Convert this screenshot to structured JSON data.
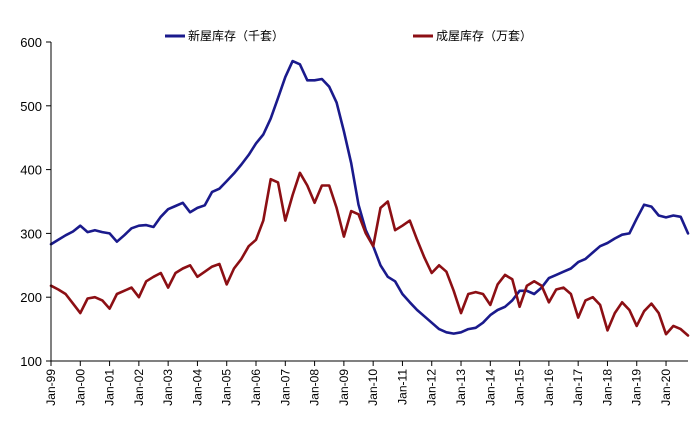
{
  "chart_data": {
    "type": "line",
    "title": "",
    "xlabel": "",
    "ylabel": "",
    "ylim": [
      100,
      600
    ],
    "yticks": [
      100,
      200,
      300,
      400,
      500,
      600
    ],
    "ytick_labels": [
      "100",
      "200",
      "300",
      "400",
      "500",
      "600"
    ],
    "xlim": [
      1999.0,
      2020.75
    ],
    "xtick_labels": [
      "Jan-99",
      "Jan-00",
      "Jan-01",
      "Jan-02",
      "Jan-03",
      "Jan-04",
      "Jan-05",
      "Jan-06",
      "Jan-07",
      "Jan-08",
      "Jan-09",
      "Jan-10",
      "Jan-11",
      "Jan-12",
      "Jan-13",
      "Jan-14",
      "Jan-15",
      "Jan-16",
      "Jan-17",
      "Jan-18",
      "Jan-19",
      "Jan-20"
    ],
    "grid": false,
    "legend_position": "top",
    "series": [
      {
        "name": "新屋库存（千套）",
        "color": "#1a1a8c",
        "x": [
          1999.0,
          1999.25,
          1999.5,
          1999.75,
          2000.0,
          2000.25,
          2000.5,
          2000.75,
          2001.0,
          2001.25,
          2001.5,
          2001.75,
          2002.0,
          2002.25,
          2002.5,
          2002.75,
          2003.0,
          2003.25,
          2003.5,
          2003.75,
          2004.0,
          2004.25,
          2004.5,
          2004.75,
          2005.0,
          2005.25,
          2005.5,
          2005.75,
          2006.0,
          2006.25,
          2006.5,
          2006.75,
          2007.0,
          2007.25,
          2007.5,
          2007.75,
          2008.0,
          2008.25,
          2008.5,
          2008.75,
          2009.0,
          2009.25,
          2009.5,
          2009.75,
          2010.0,
          2010.25,
          2010.5,
          2010.75,
          2011.0,
          2011.25,
          2011.5,
          2011.75,
          2012.0,
          2012.25,
          2012.5,
          2012.75,
          2013.0,
          2013.25,
          2013.5,
          2013.75,
          2014.0,
          2014.25,
          2014.5,
          2014.75,
          2015.0,
          2015.25,
          2015.5,
          2015.75,
          2016.0,
          2016.25,
          2016.5,
          2016.75,
          2017.0,
          2017.25,
          2017.5,
          2017.75,
          2018.0,
          2018.25,
          2018.5,
          2018.75,
          2019.0,
          2019.25,
          2019.5,
          2019.75,
          2020.0,
          2020.25,
          2020.5,
          2020.75
        ],
        "values": [
          283,
          290,
          297,
          303,
          312,
          302,
          305,
          302,
          300,
          287,
          297,
          308,
          312,
          313,
          310,
          326,
          338,
          343,
          348,
          333,
          340,
          344,
          365,
          370,
          382,
          394,
          408,
          423,
          441,
          455,
          480,
          512,
          545,
          570,
          565,
          540,
          540,
          542,
          530,
          505,
          460,
          410,
          345,
          305,
          280,
          250,
          232,
          225,
          205,
          192,
          180,
          170,
          160,
          150,
          145,
          143,
          145,
          150,
          152,
          160,
          172,
          180,
          185,
          195,
          210,
          210,
          205,
          215,
          230,
          235,
          240,
          245,
          255,
          260,
          270,
          280,
          285,
          292,
          298,
          300,
          323,
          345,
          342,
          328,
          325,
          328,
          326,
          300
        ]
      },
      {
        "name": "成屋库存（万套）",
        "color": "#8c0f14",
        "x": [
          1999.0,
          1999.25,
          1999.5,
          1999.75,
          2000.0,
          2000.25,
          2000.5,
          2000.75,
          2001.0,
          2001.25,
          2001.5,
          2001.75,
          2002.0,
          2002.25,
          2002.5,
          2002.75,
          2003.0,
          2003.25,
          2003.5,
          2003.75,
          2004.0,
          2004.25,
          2004.5,
          2004.75,
          2005.0,
          2005.25,
          2005.5,
          2005.75,
          2006.0,
          2006.25,
          2006.5,
          2006.75,
          2007.0,
          2007.25,
          2007.5,
          2007.75,
          2008.0,
          2008.25,
          2008.5,
          2008.75,
          2009.0,
          2009.25,
          2009.5,
          2009.75,
          2010.0,
          2010.25,
          2010.5,
          2010.75,
          2011.0,
          2011.25,
          2011.5,
          2011.75,
          2012.0,
          2012.25,
          2012.5,
          2012.75,
          2013.0,
          2013.25,
          2013.5,
          2013.75,
          2014.0,
          2014.25,
          2014.5,
          2014.75,
          2015.0,
          2015.25,
          2015.5,
          2015.75,
          2016.0,
          2016.25,
          2016.5,
          2016.75,
          2017.0,
          2017.25,
          2017.5,
          2017.75,
          2018.0,
          2018.25,
          2018.5,
          2018.75,
          2019.0,
          2019.25,
          2019.5,
          2019.75,
          2020.0,
          2020.25,
          2020.5,
          2020.75
        ],
        "values": [
          218,
          212,
          205,
          190,
          175,
          198,
          200,
          195,
          182,
          205,
          210,
          215,
          200,
          225,
          232,
          238,
          215,
          238,
          245,
          250,
          232,
          240,
          248,
          252,
          220,
          245,
          260,
          280,
          290,
          320,
          385,
          380,
          320,
          360,
          395,
          375,
          348,
          375,
          375,
          340,
          295,
          335,
          330,
          300,
          280,
          340,
          350,
          305,
          312,
          320,
          290,
          262,
          238,
          250,
          240,
          210,
          175,
          205,
          208,
          205,
          188,
          220,
          235,
          228,
          185,
          218,
          225,
          218,
          192,
          212,
          215,
          205,
          168,
          195,
          200,
          188,
          148,
          175,
          192,
          180,
          155,
          178,
          190,
          175,
          142,
          155,
          150,
          140
        ]
      }
    ]
  }
}
